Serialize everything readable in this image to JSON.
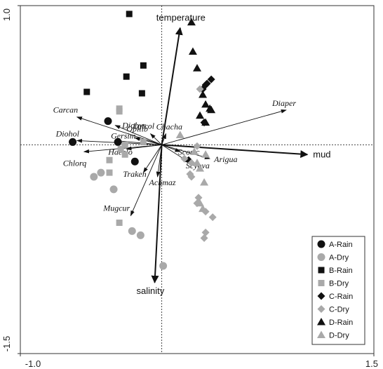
{
  "chart_data": {
    "type": "scatter",
    "title": "",
    "xlabel": "",
    "ylabel": "",
    "xlim": [
      -1.0,
      1.5
    ],
    "ylim": [
      -1.5,
      1.0
    ],
    "x_ticks": [
      {
        "value": -1.0,
        "label": "-1.0"
      },
      {
        "value": 1.5,
        "label": "1.5"
      }
    ],
    "y_ticks": [
      {
        "value": 1.0,
        "label": "1.0"
      },
      {
        "value": -1.5,
        "label": "-1.5"
      }
    ],
    "zero_lines": "dotted",
    "legend_position": "bottom-right",
    "environmental_vectors": [
      {
        "name": "temperature",
        "x": 0.13,
        "y": 0.84
      },
      {
        "name": "mud",
        "x": 1.03,
        "y": -0.07
      },
      {
        "name": "salinity",
        "x": -0.05,
        "y": -0.99
      }
    ],
    "species_vectors": [
      {
        "name": "Carcan",
        "x": -0.6,
        "y": 0.2
      },
      {
        "name": "Diohol",
        "x": -0.6,
        "y": 0.03
      },
      {
        "name": "Chlorq",
        "x": -0.55,
        "y": -0.05
      },
      {
        "name": "Diohys",
        "x": -0.33,
        "y": 0.14
      },
      {
        "name": "Gersim",
        "x": -0.33,
        "y": 0.03
      },
      {
        "name": "Opilib",
        "x": -0.19,
        "y": 0.05
      },
      {
        "name": "Lutcol",
        "x": -0.08,
        "y": 0.08
      },
      {
        "name": "Chacha",
        "x": 0.03,
        "y": 0.08
      },
      {
        "name": "Haeelo",
        "x": -0.25,
        "y": -0.03
      },
      {
        "name": "Traken",
        "x": -0.13,
        "y": -0.2
      },
      {
        "name": "Achmaz",
        "x": -0.03,
        "y": -0.23
      },
      {
        "name": "Mugcur",
        "x": -0.22,
        "y": -0.51
      },
      {
        "name": "Scosic",
        "x": 0.13,
        "y": -0.05
      },
      {
        "name": "Scyova",
        "x": 0.2,
        "y": -0.13
      },
      {
        "name": "Arigua",
        "x": 0.34,
        "y": -0.1
      },
      {
        "name": "Diaper",
        "x": 0.88,
        "y": 0.25
      }
    ],
    "series": [
      {
        "name": "A-Rain",
        "marker": "circle",
        "color": "#111111",
        "points": [
          [
            -0.38,
            0.17
          ],
          [
            -0.63,
            0.02
          ],
          [
            -0.31,
            0.02
          ],
          [
            -0.19,
            -0.12
          ]
        ]
      },
      {
        "name": "A-Dry",
        "marker": "circle",
        "color": "#a9a9a9",
        "points": [
          [
            -0.48,
            -0.23
          ],
          [
            -0.34,
            -0.32
          ],
          [
            -0.43,
            -0.2
          ],
          [
            -0.21,
            -0.62
          ],
          [
            -0.15,
            -0.65
          ],
          [
            0.01,
            -0.87
          ]
        ]
      },
      {
        "name": "B-Rain",
        "marker": "square",
        "color": "#111111",
        "points": [
          [
            -0.23,
            0.94
          ],
          [
            -0.13,
            0.57
          ],
          [
            -0.25,
            0.49
          ],
          [
            -0.53,
            0.38
          ],
          [
            -0.14,
            0.37
          ]
        ]
      },
      {
        "name": "B-Dry",
        "marker": "square",
        "color": "#a9a9a9",
        "points": [
          [
            -0.3,
            0.26
          ],
          [
            -0.3,
            0.24
          ],
          [
            -0.29,
            -0.03
          ],
          [
            -0.26,
            0.0
          ],
          [
            -0.26,
            -0.07
          ],
          [
            -0.37,
            -0.11
          ],
          [
            -0.37,
            -0.2
          ],
          [
            -0.3,
            -0.56
          ],
          [
            -0.13,
            0.02
          ]
        ]
      },
      {
        "name": "C-Rain",
        "marker": "diamond",
        "color": "#111111",
        "points": [
          [
            0.29,
            0.4
          ],
          [
            0.31,
            0.43
          ],
          [
            0.32,
            0.44
          ],
          [
            0.35,
            0.47
          ],
          [
            0.3,
            0.16
          ],
          [
            0.19,
            -0.11
          ]
        ]
      },
      {
        "name": "C-Dry",
        "marker": "diamond",
        "color": "#a9a9a9",
        "points": [
          [
            0.27,
            0.4
          ],
          [
            0.25,
            -0.01
          ],
          [
            0.21,
            -0.13
          ],
          [
            0.16,
            -0.1
          ],
          [
            0.2,
            -0.21
          ],
          [
            0.21,
            -0.23
          ],
          [
            0.26,
            -0.38
          ],
          [
            0.25,
            -0.42
          ],
          [
            0.31,
            -0.48
          ],
          [
            0.36,
            -0.52
          ],
          [
            0.31,
            -0.63
          ],
          [
            0.3,
            -0.67
          ]
        ]
      },
      {
        "name": "D-Rain",
        "marker": "triangle",
        "color": "#111111",
        "points": [
          [
            0.21,
            0.88
          ],
          [
            0.22,
            0.67
          ],
          [
            0.25,
            0.55
          ],
          [
            0.29,
            0.36
          ],
          [
            0.31,
            0.29
          ],
          [
            0.34,
            0.26
          ],
          [
            0.35,
            0.25
          ],
          [
            0.27,
            0.21
          ],
          [
            0.31,
            0.16
          ]
        ]
      },
      {
        "name": "D-Dry",
        "marker": "triangle",
        "color": "#a9a9a9",
        "points": [
          [
            0.13,
            0.07
          ],
          [
            0.31,
            -0.07
          ],
          [
            0.23,
            -0.05
          ],
          [
            0.25,
            -0.13
          ],
          [
            0.27,
            -0.17
          ],
          [
            0.3,
            -0.27
          ],
          [
            0.27,
            -0.42
          ],
          [
            0.29,
            -0.46
          ]
        ]
      }
    ]
  }
}
